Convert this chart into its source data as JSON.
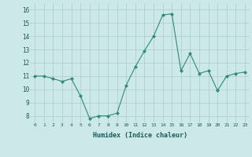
{
  "x": [
    0,
    1,
    2,
    3,
    4,
    5,
    6,
    7,
    8,
    9,
    10,
    11,
    12,
    13,
    14,
    15,
    16,
    17,
    18,
    19,
    20,
    21,
    22,
    23
  ],
  "y": [
    11,
    11,
    10.8,
    10.6,
    10.8,
    9.5,
    7.8,
    8.0,
    8.0,
    8.2,
    10.3,
    11.7,
    12.9,
    14.0,
    15.6,
    15.7,
    11.4,
    12.7,
    11.2,
    11.4,
    9.9,
    11.0,
    11.2,
    11.3
  ],
  "line_color": "#2e8b7a",
  "marker_color": "#2e8b7a",
  "bg_color": "#cce8e8",
  "grid_color": "#aacccc",
  "xlabel": "Humidex (Indice chaleur)",
  "ylim": [
    7.5,
    16.5
  ],
  "xlim": [
    -0.5,
    23.5
  ],
  "yticks": [
    8,
    9,
    10,
    11,
    12,
    13,
    14,
    15,
    16
  ],
  "xticks": [
    0,
    1,
    2,
    3,
    4,
    5,
    6,
    7,
    8,
    9,
    10,
    11,
    12,
    13,
    14,
    15,
    16,
    17,
    18,
    19,
    20,
    21,
    22,
    23
  ],
  "xtick_labels": [
    "0",
    "1",
    "2",
    "3",
    "4",
    "5",
    "6",
    "7",
    "8",
    "9",
    "10",
    "11",
    "12",
    "13",
    "14",
    "15",
    "16",
    "17",
    "18",
    "19",
    "20",
    "21",
    "22",
    "23"
  ]
}
